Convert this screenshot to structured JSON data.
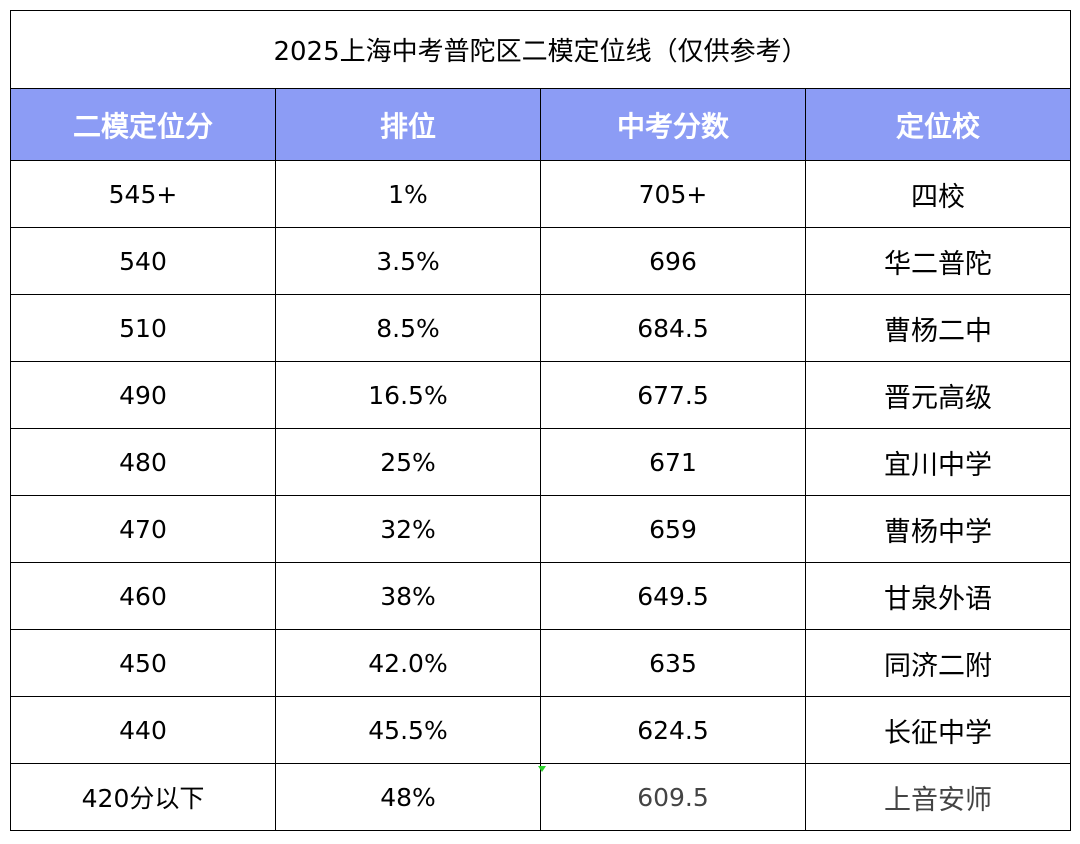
{
  "table": {
    "title": "2025上海中考普陀区二模定位线（仅供参考）",
    "headers": [
      "二模定位分",
      "排位",
      "中考分数",
      "定位校"
    ],
    "rows": [
      [
        "545+",
        "1%",
        "705+",
        "四校"
      ],
      [
        "540",
        "3.5%",
        "696",
        "华二普陀"
      ],
      [
        "510",
        "8.5%",
        "684.5",
        "曹杨二中"
      ],
      [
        "490",
        "16.5%",
        "677.5",
        "晋元高级"
      ],
      [
        "480",
        "25%",
        "671",
        "宜川中学"
      ],
      [
        "470",
        "32%",
        "659",
        "曹杨中学"
      ],
      [
        "460",
        "38%",
        "649.5",
        "甘泉外语"
      ],
      [
        "450",
        "42.0%",
        "635",
        "同济二附"
      ],
      [
        "440",
        "45.5%",
        "624.5",
        "长征中学"
      ],
      [
        "420分以下",
        "48%",
        "609.5",
        "上音安师"
      ]
    ]
  },
  "colors": {
    "header_bg": "#8c9cf5",
    "header_text": "#ffffff",
    "border": "#000000"
  }
}
